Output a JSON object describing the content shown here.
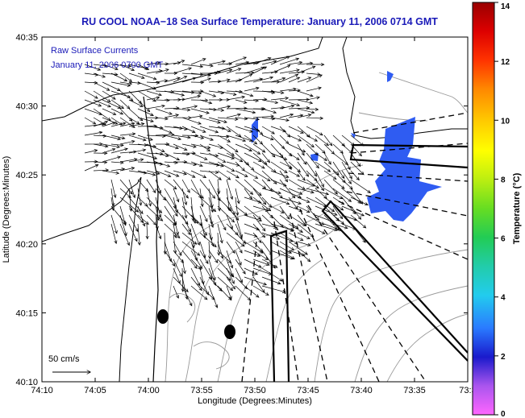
{
  "title": "RU COOL  NOAA−18  Sea Surface Temperature:  January 11, 2006 0714 GMT",
  "overlay": {
    "line1": "Raw Surface Currents",
    "line2": "January 11, 2006 0700 GMT"
  },
  "axes": {
    "xlabel": "Longitude (Degrees:Minutes)",
    "ylabel": "Latitude (Degrees:Minutes)",
    "xticks": [
      "74:10",
      "74:05",
      "74:00",
      "73:55",
      "73:50",
      "73:45",
      "73:40",
      "73:35",
      "73:3"
    ],
    "yticks": [
      "40:35",
      "40:30",
      "40:25",
      "40:20",
      "40:15",
      "40:10"
    ]
  },
  "scale": {
    "label": "50 cm/s"
  },
  "colorbar": {
    "label": "Temperature (°C)",
    "ticks": [
      "14",
      "12",
      "10",
      "8",
      "6",
      "4",
      "2",
      "0"
    ],
    "min": 0,
    "max": 14
  },
  "colors": {
    "title": "#1a1ab8",
    "sst_patch": "#2f5cf2",
    "land": "#ffffff",
    "coastline": "#000000",
    "bathymetry": "#999999"
  }
}
